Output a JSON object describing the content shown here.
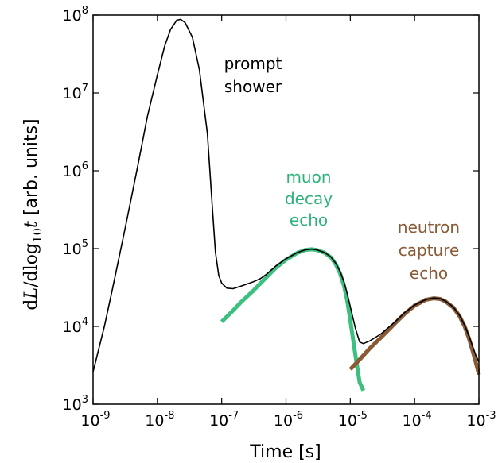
{
  "chart_data": {
    "type": "line",
    "x_scale": "log",
    "y_scale": "log",
    "xlim": [
      1e-09,
      0.001
    ],
    "ylim": [
      1000.0,
      100000000.0
    ],
    "xlabel": "Time  [s]",
    "ylabel": {
      "prefix": "d",
      "L": "L",
      "mid": "/dlog",
      "sub": "10",
      "t": "t",
      "suffix": " [arb. units]"
    },
    "x_ticks": [
      {
        "value": 1e-09,
        "base": "10",
        "exp": "-9"
      },
      {
        "value": 1e-08,
        "base": "10",
        "exp": "-8"
      },
      {
        "value": 1e-07,
        "base": "10",
        "exp": "-7"
      },
      {
        "value": 1e-06,
        "base": "10",
        "exp": "-6"
      },
      {
        "value": 1e-05,
        "base": "10",
        "exp": "-5"
      },
      {
        "value": 0.0001,
        "base": "10",
        "exp": "-4"
      },
      {
        "value": 0.001,
        "base": "10",
        "exp": "-3"
      }
    ],
    "y_ticks": [
      {
        "value": 1000.0,
        "base": "10",
        "exp": "3"
      },
      {
        "value": 10000.0,
        "base": "10",
        "exp": "4"
      },
      {
        "value": 100000.0,
        "base": "10",
        "exp": "5"
      },
      {
        "value": 1000000.0,
        "base": "10",
        "exp": "6"
      },
      {
        "value": 10000000.0,
        "base": "10",
        "exp": "7"
      },
      {
        "value": 100000000.0,
        "base": "10",
        "exp": "8"
      }
    ],
    "colors": {
      "total": "#000000",
      "muon": "#3dbf80",
      "neutron": "#8a5a35"
    },
    "series": [
      {
        "key": "muon",
        "color": "#3dbf80",
        "points": [
          [
            1e-07,
            11500
          ],
          [
            1.5e-07,
            16000
          ],
          [
            2e-07,
            20500
          ],
          [
            3e-07,
            28000
          ],
          [
            5e-07,
            43000
          ],
          [
            7e-07,
            57000
          ],
          [
            1e-06,
            72000
          ],
          [
            1.5e-06,
            88000
          ],
          [
            2e-06,
            96000
          ],
          [
            2.5e-06,
            98000
          ],
          [
            3e-06,
            96000
          ],
          [
            4e-06,
            88000
          ],
          [
            5e-06,
            77000
          ],
          [
            6e-06,
            62000
          ],
          [
            7e-06,
            47000
          ],
          [
            8e-06,
            33000
          ],
          [
            9e-06,
            21000
          ],
          [
            1e-05,
            12000
          ],
          [
            1.2e-05,
            4300
          ],
          [
            1.4e-05,
            1900
          ],
          [
            1.6e-05,
            1500
          ]
        ]
      },
      {
        "key": "neutron",
        "color": "#8a5a35",
        "points": [
          [
            1e-05,
            2800
          ],
          [
            1.5e-05,
            4000
          ],
          [
            2e-05,
            5200
          ],
          [
            3e-05,
            7200
          ],
          [
            5e-05,
            11000
          ],
          [
            7e-05,
            14500
          ],
          [
            0.0001,
            18500
          ],
          [
            0.00015,
            22000
          ],
          [
            0.0002,
            23000
          ],
          [
            0.00025,
            22500
          ],
          [
            0.0003,
            21000
          ],
          [
            0.0004,
            17500
          ],
          [
            0.0005,
            13500
          ],
          [
            0.0006,
            10000
          ],
          [
            0.0007,
            7000
          ],
          [
            0.0008,
            4800
          ],
          [
            0.0009,
            3400
          ],
          [
            0.001,
            2400
          ]
        ]
      },
      {
        "key": "total",
        "color": "#000000",
        "points": [
          [
            1e-09,
            2600
          ],
          [
            1.5e-09,
            10000
          ],
          [
            2e-09,
            30000
          ],
          [
            3e-09,
            150000
          ],
          [
            4e-09,
            480000
          ],
          [
            5e-09,
            1200000
          ],
          [
            7e-09,
            5000000
          ],
          [
            1e-08,
            17000000
          ],
          [
            1.3e-08,
            40000000
          ],
          [
            1.6e-08,
            65000000
          ],
          [
            2e-08,
            86000000
          ],
          [
            2.3e-08,
            88000000
          ],
          [
            2.7e-08,
            80000000
          ],
          [
            3.5e-08,
            52000000
          ],
          [
            4.5e-08,
            20000000
          ],
          [
            6e-08,
            3000000
          ],
          [
            7e-08,
            450000
          ],
          [
            8e-08,
            90000
          ],
          [
            9e-08,
            45000
          ],
          [
            1e-07,
            36000
          ],
          [
            1.2e-07,
            31000
          ],
          [
            1.5e-07,
            30500
          ],
          [
            2e-07,
            33000
          ],
          [
            3e-07,
            37000
          ],
          [
            4e-07,
            41000
          ],
          [
            5e-07,
            47000
          ],
          [
            7e-07,
            60000
          ],
          [
            1e-06,
            74000
          ],
          [
            1.5e-06,
            89000
          ],
          [
            2e-06,
            96500
          ],
          [
            2.5e-06,
            98500
          ],
          [
            3e-06,
            96500
          ],
          [
            4e-06,
            89000
          ],
          [
            5e-06,
            78000
          ],
          [
            6e-06,
            64000
          ],
          [
            7e-06,
            50000
          ],
          [
            8e-06,
            37000
          ],
          [
            9e-06,
            26000
          ],
          [
            1e-05,
            18000
          ],
          [
            1.2e-05,
            9500
          ],
          [
            1.4e-05,
            6300
          ],
          [
            1.6e-05,
            6000
          ],
          [
            2e-05,
            6500
          ],
          [
            3e-05,
            8000
          ],
          [
            5e-05,
            11500
          ],
          [
            7e-05,
            15000
          ],
          [
            0.0001,
            18800
          ],
          [
            0.00015,
            22200
          ],
          [
            0.0002,
            23200
          ],
          [
            0.00025,
            22700
          ],
          [
            0.0003,
            21200
          ],
          [
            0.0004,
            17800
          ],
          [
            0.0005,
            13800
          ],
          [
            0.0006,
            10300
          ],
          [
            0.0007,
            7500
          ],
          [
            0.0008,
            5500
          ],
          [
            0.0009,
            4200
          ],
          [
            0.001,
            3500
          ]
        ]
      }
    ],
    "annotations": [
      {
        "key": "prompt",
        "color": "#000000",
        "lines": [
          "prompt",
          "shower"
        ]
      },
      {
        "key": "muon",
        "color": "#2db37a",
        "lines": [
          "muon",
          "decay",
          "echo"
        ]
      },
      {
        "key": "neutron",
        "color": "#8a5a35",
        "lines": [
          "neutron",
          "capture",
          "echo"
        ]
      }
    ]
  }
}
